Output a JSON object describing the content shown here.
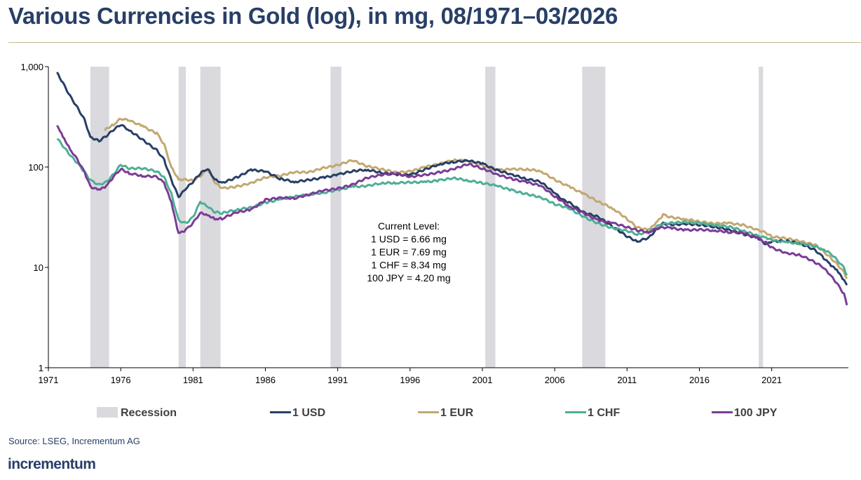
{
  "title": "Various Currencies in Gold (log), in mg, 08/1971–03/2026",
  "source": "Source: LSEG, Incrementum AG",
  "brand": "incrementum",
  "colors": {
    "title": "#283f66",
    "recession": "#d9d9de",
    "usd": "#283f66",
    "eur": "#c2a870",
    "chf": "#4fae96",
    "jpy": "#7a3c96"
  },
  "chart_data": {
    "type": "line",
    "title": "Various Currencies in Gold (log), in mg, 08/1971–03/2026",
    "xlabel": "",
    "ylabel": "",
    "y_scale": "log",
    "xlim": [
      1971.6,
      2026.25
    ],
    "ylim": [
      1,
      1000
    ],
    "x_ticks": [
      1971,
      1976,
      1981,
      1986,
      1991,
      1996,
      2001,
      2006,
      2011,
      2016,
      2021
    ],
    "x_tick_labels": [
      "1971",
      "1976",
      "1981",
      "1986",
      "1991",
      "1996",
      "2001",
      "2006",
      "2011",
      "2016",
      "2021"
    ],
    "y_ticks": [
      1,
      10,
      100,
      1000
    ],
    "y_tick_labels": [
      "1",
      "10",
      "100",
      "1,000"
    ],
    "grid": false,
    "legend_position": "bottom",
    "recessions": [
      [
        1973.9,
        1975.2
      ],
      [
        1980.0,
        1980.5
      ],
      [
        1981.5,
        1982.9
      ],
      [
        1990.5,
        1991.25
      ],
      [
        2001.2,
        2001.9
      ],
      [
        2007.9,
        2009.5
      ],
      [
        2020.1,
        2020.4
      ]
    ],
    "legend": [
      {
        "key": "recession",
        "label": "Recession"
      },
      {
        "key": "usd",
        "label": "1 USD"
      },
      {
        "key": "eur",
        "label": "1 EUR"
      },
      {
        "key": "chf",
        "label": "1 CHF"
      },
      {
        "key": "jpy",
        "label": "100 JPY"
      }
    ],
    "annotation": [
      "Current Level:",
      "1 USD = 6.66 mg",
      "1 EUR = 7.69 mg",
      "1 CHF = 8.34 mg",
      "100 JPY = 4.20 mg"
    ],
    "series": [
      {
        "key": "usd",
        "name": "1 USD",
        "x": [
          1971.6,
          1972.0,
          1972.5,
          1973.0,
          1973.5,
          1973.9,
          1974.5,
          1975.0,
          1975.5,
          1976.0,
          1976.6,
          1977.5,
          1978.5,
          1979.0,
          1979.5,
          1980.0,
          1980.5,
          1981.0,
          1981.5,
          1982.0,
          1982.5,
          1983.0,
          1984.0,
          1985.0,
          1986.0,
          1987.0,
          1988.0,
          1989.0,
          1990.0,
          1991.0,
          1992.0,
          1993.0,
          1994.0,
          1995.0,
          1996.0,
          1997.0,
          1998.0,
          1999.0,
          2000.0,
          2001.0,
          2002.0,
          2003.0,
          2004.0,
          2005.0,
          2006.0,
          2006.5,
          2007.0,
          2008.0,
          2009.0,
          2010.0,
          2011.0,
          2011.7,
          2012.5,
          2013.0,
          2013.5,
          2014.0,
          2015.0,
          2016.0,
          2017.0,
          2018.0,
          2019.0,
          2020.0,
          2020.6,
          2021.0,
          2022.0,
          2023.0,
          2024.0,
          2024.5,
          2025.0,
          2025.5,
          2026.0,
          2026.2
        ],
        "values": [
          880,
          700,
          520,
          400,
          300,
          200,
          180,
          200,
          230,
          260,
          230,
          190,
          150,
          120,
          75,
          50,
          60,
          70,
          85,
          95,
          75,
          70,
          80,
          95,
          90,
          75,
          70,
          75,
          80,
          85,
          90,
          92,
          87,
          85,
          85,
          95,
          105,
          110,
          115,
          110,
          95,
          85,
          75,
          70,
          55,
          48,
          45,
          36,
          32,
          25,
          20,
          18,
          20,
          24,
          28,
          27,
          27,
          26,
          25,
          24,
          22,
          20,
          17,
          18,
          18,
          17,
          15,
          13,
          11,
          9.5,
          7.5,
          6.66
        ]
      },
      {
        "key": "eur",
        "name": "1 EUR",
        "x": [
          1974.9,
          1975.5,
          1976.0,
          1976.6,
          1977.5,
          1978.5,
          1979.0,
          1979.5,
          1980.0,
          1981.0,
          1981.5,
          1982.0,
          1982.5,
          1983.0,
          1984.0,
          1985.0,
          1986.0,
          1987.0,
          1988.0,
          1989.0,
          1990.0,
          1991.0,
          1992.0,
          1993.0,
          1994.0,
          1995.0,
          1996.0,
          1997.0,
          1998.0,
          1999.0,
          2000.0,
          2001.0,
          2002.0,
          2003.0,
          2004.0,
          2005.0,
          2006.0,
          2007.0,
          2008.0,
          2009.0,
          2010.0,
          2011.0,
          2011.7,
          2012.5,
          2013.0,
          2013.5,
          2014.0,
          2015.0,
          2016.0,
          2017.0,
          2018.0,
          2019.0,
          2020.0,
          2020.6,
          2021.0,
          2022.0,
          2023.0,
          2024.0,
          2024.5,
          2025.0,
          2025.5,
          2026.0,
          2026.2
        ],
        "values": [
          230,
          260,
          300,
          290,
          260,
          220,
          170,
          100,
          75,
          72,
          80,
          95,
          70,
          62,
          65,
          70,
          78,
          80,
          88,
          90,
          100,
          105,
          115,
          100,
          95,
          90,
          92,
          100,
          105,
          115,
          115,
          105,
          95,
          95,
          93,
          90,
          75,
          65,
          55,
          45,
          38,
          30,
          25,
          24,
          28,
          34,
          32,
          30,
          28,
          27,
          28,
          27,
          24,
          22,
          20,
          19,
          18,
          17,
          15,
          13,
          11,
          9,
          7.69
        ]
      },
      {
        "key": "chf",
        "name": "1 CHF",
        "x": [
          1971.6,
          1972.0,
          1972.5,
          1973.0,
          1973.5,
          1973.9,
          1974.5,
          1975.0,
          1975.5,
          1976.0,
          1976.6,
          1977.5,
          1978.5,
          1979.0,
          1979.5,
          1980.0,
          1980.5,
          1981.0,
          1981.5,
          1982.0,
          1982.5,
          1983.0,
          1984.0,
          1985.0,
          1986.0,
          1987.0,
          1988.0,
          1989.0,
          1990.0,
          1991.0,
          1992.0,
          1993.0,
          1994.0,
          1995.0,
          1996.0,
          1997.0,
          1998.0,
          1999.0,
          2000.0,
          2001.0,
          2002.0,
          2003.0,
          2004.0,
          2005.0,
          2006.0,
          2007.0,
          2008.0,
          2009.0,
          2010.0,
          2011.0,
          2011.7,
          2012.5,
          2013.0,
          2013.5,
          2014.0,
          2015.0,
          2016.0,
          2017.0,
          2018.0,
          2019.0,
          2020.0,
          2020.6,
          2021.0,
          2022.0,
          2023.0,
          2024.0,
          2024.5,
          2025.0,
          2025.5,
          2026.0,
          2026.2
        ],
        "values": [
          190,
          160,
          130,
          110,
          90,
          75,
          68,
          72,
          85,
          105,
          95,
          95,
          90,
          80,
          55,
          30,
          28,
          32,
          45,
          40,
          35,
          34,
          37,
          40,
          45,
          48,
          50,
          52,
          55,
          60,
          65,
          65,
          68,
          68,
          70,
          72,
          75,
          78,
          72,
          68,
          65,
          60,
          55,
          50,
          42,
          38,
          32,
          28,
          25,
          23,
          21,
          22,
          25,
          27,
          28,
          29,
          28,
          26,
          25,
          23,
          21,
          20,
          19,
          18,
          17,
          16,
          15,
          14,
          12,
          10,
          8.34
        ]
      },
      {
        "key": "jpy",
        "name": "100 JPY",
        "x": [
          1971.6,
          1972.0,
          1972.5,
          1973.0,
          1973.5,
          1973.9,
          1974.5,
          1975.0,
          1975.5,
          1976.0,
          1976.6,
          1977.5,
          1978.5,
          1979.0,
          1979.5,
          1980.0,
          1980.5,
          1981.0,
          1981.5,
          1982.0,
          1982.5,
          1983.0,
          1984.0,
          1985.0,
          1986.0,
          1987.0,
          1988.0,
          1989.0,
          1990.0,
          1991.0,
          1992.0,
          1993.0,
          1994.0,
          1995.0,
          1996.0,
          1997.0,
          1998.0,
          1999.0,
          2000.0,
          2001.0,
          2002.0,
          2003.0,
          2004.0,
          2005.0,
          2006.0,
          2007.0,
          2008.0,
          2009.0,
          2010.0,
          2011.0,
          2011.7,
          2012.5,
          2013.0,
          2013.5,
          2014.0,
          2015.0,
          2016.0,
          2017.0,
          2018.0,
          2019.0,
          2020.0,
          2020.6,
          2021.0,
          2022.0,
          2023.0,
          2024.0,
          2024.5,
          2025.0,
          2025.5,
          2026.0,
          2026.2
        ],
        "values": [
          260,
          200,
          150,
          120,
          90,
          65,
          60,
          65,
          80,
          95,
          85,
          80,
          80,
          70,
          45,
          22,
          24,
          28,
          35,
          33,
          30,
          30,
          35,
          38,
          48,
          50,
          48,
          52,
          58,
          62,
          68,
          78,
          82,
          85,
          80,
          85,
          90,
          95,
          105,
          95,
          85,
          78,
          72,
          65,
          50,
          40,
          35,
          30,
          28,
          25,
          23,
          22,
          24,
          25,
          25,
          24,
          24,
          23,
          22,
          22,
          20,
          18,
          16,
          14,
          13,
          11,
          10,
          8.5,
          7,
          5.5,
          4.2
        ]
      }
    ]
  }
}
